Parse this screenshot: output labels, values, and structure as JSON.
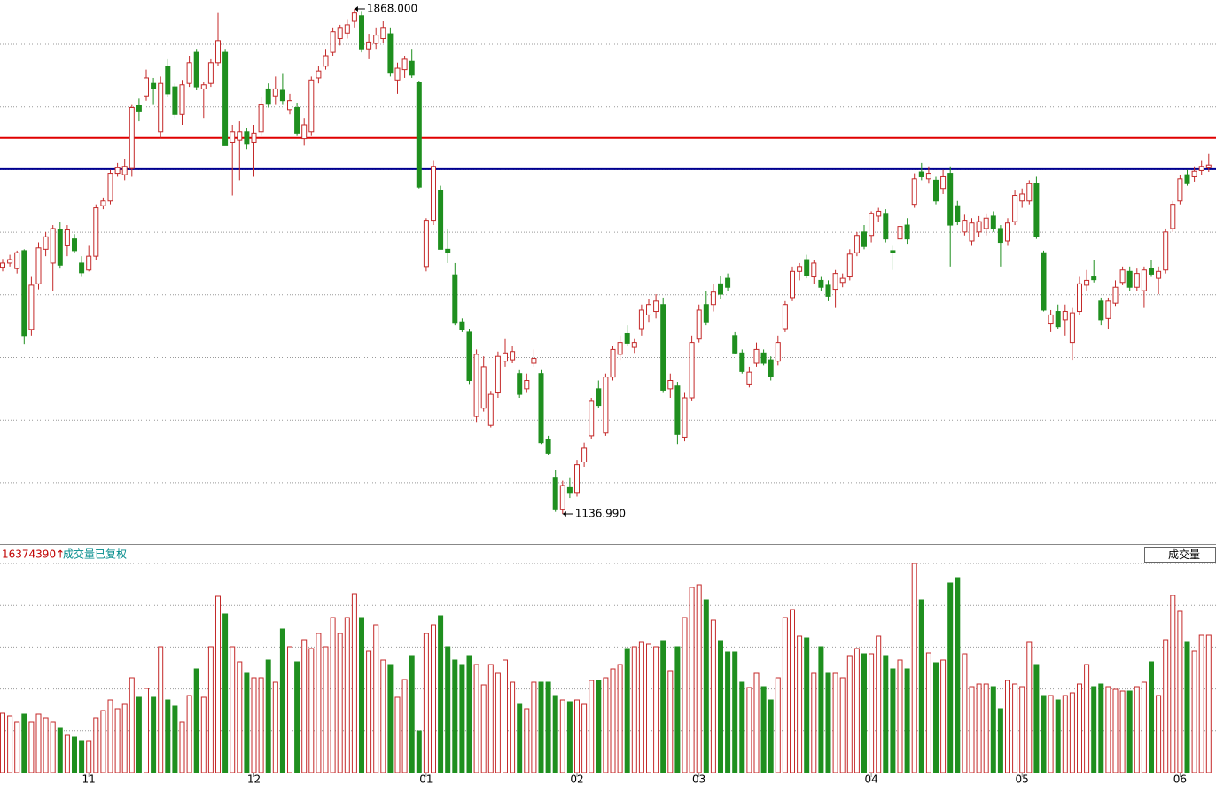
{
  "chart_data": {
    "type": "candlestick",
    "up_color": "#c42a2a",
    "down_color": "#1f8f1f",
    "ylim": [
      1093.4,
      1880.8
    ],
    "hlines": [
      {
        "value": 1681,
        "color": "#e00000"
      },
      {
        "value": 1636,
        "color": "#000090"
      }
    ],
    "annotations": [
      {
        "text": "1868.000",
        "value": 1868
      },
      {
        "text": "1136.990",
        "value": 1136.99
      }
    ],
    "volume_max": {
      "value": 16374390,
      "label": "16374390↑"
    },
    "volume_title": "成交量已复权",
    "volume_button": "成交量",
    "categories": [
      null,
      null,
      null,
      null,
      null,
      null,
      null,
      null,
      null,
      null,
      null,
      null,
      "11",
      null,
      null,
      null,
      null,
      null,
      null,
      null,
      null,
      null,
      null,
      null,
      null,
      null,
      null,
      null,
      null,
      null,
      null,
      null,
      null,
      null,
      null,
      "12",
      null,
      null,
      null,
      null,
      null,
      null,
      null,
      null,
      null,
      null,
      null,
      null,
      null,
      null,
      null,
      null,
      null,
      null,
      null,
      null,
      null,
      null,
      null,
      "01",
      null,
      null,
      null,
      null,
      null,
      null,
      null,
      null,
      null,
      null,
      null,
      null,
      null,
      null,
      null,
      null,
      null,
      null,
      null,
      null,
      "02",
      null,
      null,
      null,
      null,
      null,
      null,
      null,
      null,
      null,
      null,
      null,
      null,
      null,
      null,
      null,
      null,
      "03",
      null,
      null,
      null,
      null,
      null,
      null,
      null,
      null,
      null,
      null,
      null,
      null,
      null,
      null,
      null,
      null,
      null,
      null,
      null,
      null,
      null,
      null,
      null,
      "04",
      null,
      null,
      null,
      null,
      null,
      null,
      null,
      null,
      null,
      null,
      null,
      null,
      null,
      null,
      null,
      null,
      null,
      null,
      null,
      null,
      "05",
      null,
      null,
      null,
      null,
      null,
      null,
      null,
      null,
      null,
      null,
      null,
      null,
      null,
      null,
      null,
      null,
      null,
      null,
      null,
      null,
      null,
      "06",
      null,
      null,
      null,
      null
    ],
    "ohlc": [
      [
        1494,
        1506,
        1488,
        1500
      ],
      [
        1500,
        1512,
        1495,
        1505
      ],
      [
        1492,
        1518,
        1485,
        1515
      ],
      [
        1518,
        1520,
        1383,
        1395
      ],
      [
        1404,
        1480,
        1395,
        1468
      ],
      [
        1470,
        1530,
        1462,
        1522
      ],
      [
        1520,
        1545,
        1510,
        1538
      ],
      [
        1500,
        1555,
        1460,
        1550
      ],
      [
        1548,
        1560,
        1492,
        1497
      ],
      [
        1525,
        1555,
        1510,
        1548
      ],
      [
        1535,
        1542,
        1515,
        1518
      ],
      [
        1500,
        1510,
        1480,
        1486
      ],
      [
        1490,
        1525,
        1488,
        1510
      ],
      [
        1510,
        1585,
        1505,
        1580
      ],
      [
        1583,
        1595,
        1578,
        1590
      ],
      [
        1590,
        1635,
        1585,
        1630
      ],
      [
        1630,
        1645,
        1625,
        1638
      ],
      [
        1628,
        1650,
        1620,
        1640
      ],
      [
        1637,
        1730,
        1625,
        1725
      ],
      [
        1728,
        1738,
        1705,
        1720
      ],
      [
        1742,
        1780,
        1735,
        1768
      ],
      [
        1760,
        1768,
        1730,
        1753
      ],
      [
        1690,
        1770,
        1680,
        1760
      ],
      [
        1785,
        1795,
        1740,
        1745
      ],
      [
        1755,
        1760,
        1710,
        1715
      ],
      [
        1715,
        1765,
        1700,
        1758
      ],
      [
        1760,
        1800,
        1755,
        1790
      ],
      [
        1805,
        1810,
        1750,
        1755
      ],
      [
        1752,
        1762,
        1710,
        1758
      ],
      [
        1760,
        1795,
        1755,
        1790
      ],
      [
        1790,
        1862,
        1785,
        1822
      ],
      [
        1805,
        1810,
        1672,
        1670
      ],
      [
        1675,
        1700,
        1598,
        1690
      ],
      [
        1678,
        1705,
        1620,
        1690
      ],
      [
        1690,
        1695,
        1665,
        1672
      ],
      [
        1675,
        1700,
        1625,
        1688
      ],
      [
        1690,
        1740,
        1685,
        1730
      ],
      [
        1752,
        1760,
        1725,
        1731
      ],
      [
        1742,
        1770,
        1730,
        1752
      ],
      [
        1750,
        1775,
        1730,
        1735
      ],
      [
        1722,
        1745,
        1715,
        1735
      ],
      [
        1725,
        1732,
        1685,
        1688
      ],
      [
        1680,
        1710,
        1670,
        1700
      ],
      [
        1690,
        1770,
        1685,
        1765
      ],
      [
        1768,
        1785,
        1760,
        1778
      ],
      [
        1785,
        1810,
        1780,
        1800
      ],
      [
        1805,
        1840,
        1800,
        1835
      ],
      [
        1825,
        1845,
        1815,
        1840
      ],
      [
        1833,
        1852,
        1825,
        1845
      ],
      [
        1850,
        1868,
        1840,
        1862
      ],
      [
        1858,
        1865,
        1805,
        1810
      ],
      [
        1810,
        1832,
        1795,
        1820
      ],
      [
        1818,
        1840,
        1810,
        1830
      ],
      [
        1825,
        1850,
        1818,
        1840
      ],
      [
        1832,
        1840,
        1770,
        1776
      ],
      [
        1765,
        1790,
        1745,
        1782
      ],
      [
        1780,
        1800,
        1768,
        1795
      ],
      [
        1792,
        1810,
        1768,
        1772
      ],
      [
        1762,
        1764,
        1608,
        1610
      ],
      [
        1495,
        1565,
        1488,
        1562
      ],
      [
        1562,
        1648,
        1555,
        1640
      ],
      [
        1605,
        1612,
        1520,
        1520
      ],
      [
        1520,
        1550,
        1500,
        1515
      ],
      [
        1483,
        1500,
        1410,
        1413
      ],
      [
        1415,
        1420,
        1400,
        1404
      ],
      [
        1400,
        1405,
        1325,
        1330
      ],
      [
        1278,
        1375,
        1270,
        1368
      ],
      [
        1290,
        1365,
        1285,
        1350
      ],
      [
        1265,
        1315,
        1262,
        1310
      ],
      [
        1312,
        1372,
        1305,
        1365
      ],
      [
        1358,
        1390,
        1350,
        1370
      ],
      [
        1360,
        1380,
        1355,
        1372
      ],
      [
        1340,
        1345,
        1305,
        1310
      ],
      [
        1318,
        1340,
        1312,
        1330
      ],
      [
        1355,
        1375,
        1350,
        1362
      ],
      [
        1340,
        1345,
        1238,
        1240
      ],
      [
        1245,
        1250,
        1222,
        1225
      ],
      [
        1190,
        1200,
        1140,
        1143
      ],
      [
        1143,
        1185,
        1136.99,
        1178
      ],
      [
        1175,
        1190,
        1160,
        1168
      ],
      [
        1168,
        1215,
        1162,
        1208
      ],
      [
        1212,
        1240,
        1205,
        1232
      ],
      [
        1250,
        1305,
        1245,
        1300
      ],
      [
        1318,
        1330,
        1290,
        1294
      ],
      [
        1254,
        1340,
        1250,
        1335
      ],
      [
        1335,
        1380,
        1330,
        1375
      ],
      [
        1368,
        1395,
        1360,
        1385
      ],
      [
        1398,
        1410,
        1380,
        1384
      ],
      [
        1378,
        1390,
        1370,
        1385
      ],
      [
        1405,
        1440,
        1395,
        1432
      ],
      [
        1425,
        1448,
        1415,
        1440
      ],
      [
        1430,
        1455,
        1420,
        1445
      ],
      [
        1440,
        1450,
        1312,
        1316
      ],
      [
        1318,
        1340,
        1305,
        1330
      ],
      [
        1322,
        1328,
        1238,
        1252
      ],
      [
        1248,
        1312,
        1242,
        1305
      ],
      [
        1305,
        1395,
        1300,
        1385
      ],
      [
        1390,
        1440,
        1385,
        1432
      ],
      [
        1440,
        1460,
        1410,
        1415
      ],
      [
        1440,
        1470,
        1430,
        1458
      ],
      [
        1470,
        1482,
        1448,
        1455
      ],
      [
        1478,
        1485,
        1460,
        1465
      ],
      [
        1395,
        1400,
        1368,
        1370
      ],
      [
        1370,
        1375,
        1340,
        1343
      ],
      [
        1325,
        1350,
        1320,
        1342
      ],
      [
        1355,
        1385,
        1350,
        1375
      ],
      [
        1370,
        1375,
        1352,
        1355
      ],
      [
        1360,
        1365,
        1330,
        1336
      ],
      [
        1358,
        1395,
        1352,
        1385
      ],
      [
        1405,
        1445,
        1400,
        1440
      ],
      [
        1450,
        1495,
        1445,
        1488
      ],
      [
        1488,
        1500,
        1475,
        1495
      ],
      [
        1505,
        1512,
        1478,
        1482
      ],
      [
        1480,
        1505,
        1470,
        1500
      ],
      [
        1475,
        1480,
        1460,
        1465
      ],
      [
        1468,
        1475,
        1445,
        1452
      ],
      [
        1462,
        1490,
        1435,
        1485
      ],
      [
        1472,
        1485,
        1465,
        1478
      ],
      [
        1480,
        1520,
        1475,
        1513
      ],
      [
        1515,
        1545,
        1510,
        1540
      ],
      [
        1545,
        1555,
        1520,
        1524
      ],
      [
        1540,
        1575,
        1530,
        1572
      ],
      [
        1568,
        1580,
        1560,
        1575
      ],
      [
        1572,
        1578,
        1530,
        1535
      ],
      [
        1518,
        1525,
        1490,
        1515
      ],
      [
        1535,
        1560,
        1525,
        1553
      ],
      [
        1555,
        1565,
        1528,
        1535
      ],
      [
        1585,
        1630,
        1580,
        1622
      ],
      [
        1632,
        1645,
        1620,
        1625
      ],
      [
        1622,
        1640,
        1615,
        1630
      ],
      [
        1620,
        1625,
        1585,
        1590
      ],
      [
        1608,
        1635,
        1600,
        1625
      ],
      [
        1630,
        1640,
        1495,
        1555
      ],
      [
        1583,
        1590,
        1555,
        1560
      ],
      [
        1545,
        1570,
        1540,
        1562
      ],
      [
        1532,
        1565,
        1525,
        1558
      ],
      [
        1545,
        1568,
        1538,
        1560
      ],
      [
        1550,
        1572,
        1540,
        1565
      ],
      [
        1568,
        1575,
        1545,
        1550
      ],
      [
        1550,
        1555,
        1495,
        1530
      ],
      [
        1532,
        1565,
        1525,
        1558
      ],
      [
        1560,
        1605,
        1555,
        1598
      ],
      [
        1590,
        1608,
        1580,
        1600
      ],
      [
        1590,
        1620,
        1585,
        1615
      ],
      [
        1615,
        1625,
        1535,
        1538
      ],
      [
        1515,
        1518,
        1430,
        1432
      ],
      [
        1412,
        1432,
        1400,
        1425
      ],
      [
        1430,
        1440,
        1405,
        1408
      ],
      [
        1418,
        1440,
        1395,
        1430
      ],
      [
        1385,
        1435,
        1360,
        1428
      ],
      [
        1430,
        1480,
        1425,
        1470
      ],
      [
        1468,
        1490,
        1460,
        1475
      ],
      [
        1480,
        1505,
        1472,
        1476
      ],
      [
        1445,
        1450,
        1410,
        1418
      ],
      [
        1420,
        1450,
        1405,
        1445
      ],
      [
        1442,
        1475,
        1438,
        1465
      ],
      [
        1472,
        1495,
        1468,
        1490
      ],
      [
        1488,
        1495,
        1460,
        1465
      ],
      [
        1465,
        1492,
        1460,
        1485
      ],
      [
        1460,
        1495,
        1435,
        1490
      ],
      [
        1492,
        1505,
        1480,
        1484
      ],
      [
        1478,
        1495,
        1455,
        1488
      ],
      [
        1490,
        1550,
        1485,
        1545
      ],
      [
        1550,
        1590,
        1545,
        1585
      ],
      [
        1590,
        1628,
        1585,
        1622
      ],
      [
        1628,
        1635,
        1612,
        1615
      ],
      [
        1625,
        1640,
        1618,
        1633
      ],
      [
        1634,
        1648,
        1628,
        1640
      ],
      [
        1638,
        1658,
        1632,
        1642
      ]
    ],
    "volume": [
      4649000,
      4441000,
      3955000,
      4579000,
      3955000,
      4579000,
      4302000,
      3955000,
      3469000,
      2914000,
      2775000,
      2498000,
      2498000,
      4302000,
      4857000,
      5689000,
      4996000,
      5342000,
      7424000,
      5898000,
      6591000,
      5898000,
      9852000,
      5689000,
      5204000,
      3955000,
      6036000,
      8118000,
      5898000,
      9852000,
      13807000,
      12420000,
      9852000,
      8673000,
      7771000,
      7424000,
      7424000,
      8812000,
      7077000,
      11240000,
      9852000,
      8673000,
      10407000,
      9714000,
      10893000,
      9852000,
      12142000,
      10893000,
      12142000,
      14015000,
      12142000,
      9505000,
      11587000,
      8812000,
      8465000,
      5898000,
      7285000,
      9159000,
      3261000,
      10893000,
      11587000,
      12281000,
      9852000,
      8812000,
      8465000,
      9159000,
      8465000,
      6869000,
      8465000,
      7771000,
      8812000,
      7077000,
      5342000,
      4996000,
      7077000,
      7077000,
      7077000,
      6036000,
      5689000,
      5551000,
      5689000,
      5342000,
      7216000,
      7216000,
      7424000,
      8118000,
      8465000,
      9714000,
      9852000,
      10199000,
      10061000,
      9852000,
      10338000,
      7979000,
      9852000,
      12142000,
      14501000,
      14709000,
      13530000,
      11934000,
      10338000,
      9436000,
      9436000,
      7077000,
      6661000,
      7771000,
      6730000,
      5689000,
      7424000,
      12142000,
      12766000,
      10685000,
      10546000,
      7771000,
      9852000,
      7771000,
      7771000,
      7424000,
      9159000,
      9714000,
      9297000,
      9297000,
      10685000,
      9159000,
      8118000,
      8812000,
      8118000,
      16374390,
      13530000,
      9367000,
      8603000,
      8812000,
      14848000,
      15264000,
      9297000,
      6730000,
      6938000,
      6938000,
      6730000,
      4996000,
      7216000,
      6938000,
      6730000,
      10199000,
      8465000,
      6036000,
      6036000,
      5689000,
      6036000,
      6244000,
      6938000,
      8465000,
      6730000,
      6938000,
      6730000,
      6522000,
      6383000,
      6383000,
      6730000,
      7077000,
      8673000,
      6036000,
      10407000,
      13877000,
      12628000,
      10199000,
      9505000,
      10754000,
      10754000
    ]
  }
}
